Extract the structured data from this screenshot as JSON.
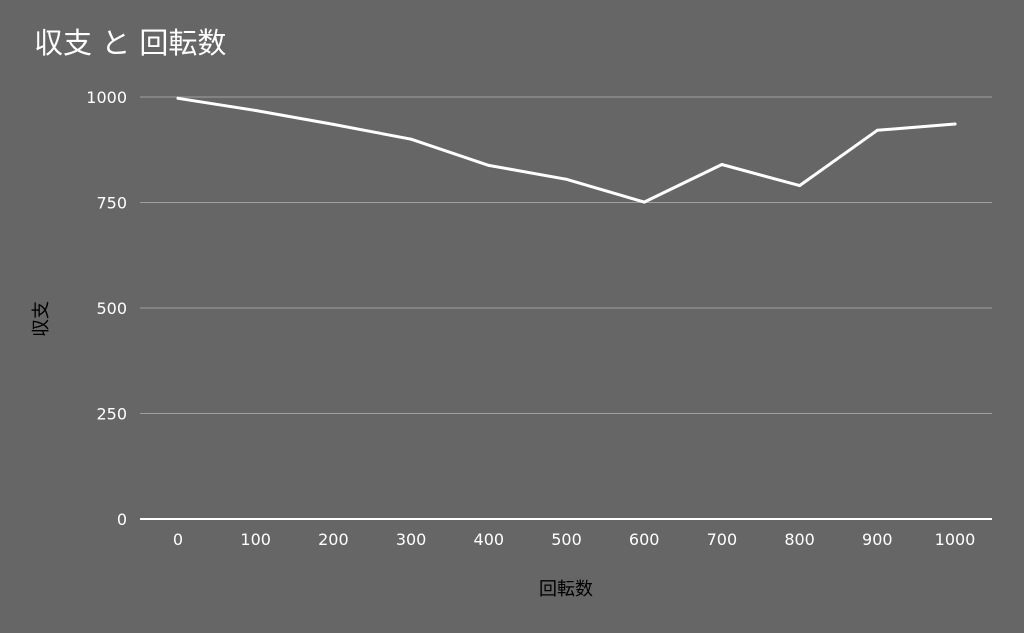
{
  "chart_data": {
    "type": "line",
    "title": "収支 と 回転数",
    "xlabel": "回転数",
    "ylabel": "収支",
    "categories": [
      "0",
      "100",
      "200",
      "300",
      "400",
      "500",
      "600",
      "700",
      "800",
      "900",
      "1000"
    ],
    "series": [
      {
        "values": [
          997,
          968,
          935,
          900,
          838,
          805,
          751,
          840,
          790,
          921,
          936
        ]
      }
    ],
    "ylim": [
      0,
      1000
    ],
    "yticks": [
      0,
      250,
      500,
      750,
      1000
    ],
    "grid": true,
    "legend": "none",
    "colors": {
      "background": "#666666",
      "line": "#ffffff",
      "grid": "#a0a0a0",
      "axis": "#ffffff",
      "tick_text": "#ffffff",
      "axis_label_text": "#000000"
    }
  }
}
